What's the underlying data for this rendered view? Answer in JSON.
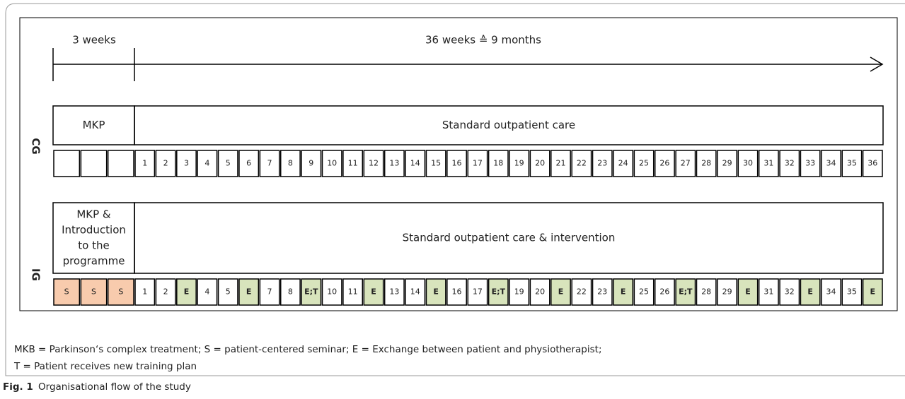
{
  "timeline": {
    "phase1": "3 weeks",
    "phase2": "36 weeks  ≙ 9 months"
  },
  "groups": [
    {
      "label": "CG",
      "phase1": [
        "MKP"
      ],
      "phase2": "Standard outpatient care",
      "pre_cells": [],
      "weeks": [
        1,
        2,
        3,
        4,
        5,
        6,
        7,
        8,
        9,
        10,
        11,
        12,
        13,
        14,
        15,
        16,
        17,
        18,
        19,
        20,
        21,
        22,
        23,
        24,
        25,
        26,
        27,
        28,
        29,
        30,
        31,
        32,
        33,
        34,
        35,
        36
      ]
    },
    {
      "label": "IG",
      "phase1": [
        "MKP &",
        "Introduction",
        "to the",
        "programme"
      ],
      "phase2": "Standard outpatient care & intervention",
      "pre_cells": [
        "S",
        "S",
        "S"
      ],
      "weeks": [
        1,
        2,
        "E",
        4,
        5,
        "E",
        7,
        8,
        "E;T",
        10,
        11,
        "E",
        13,
        14,
        "E",
        16,
        17,
        "E;T",
        19,
        20,
        "E",
        22,
        23,
        "E",
        25,
        26,
        "E;T",
        28,
        29,
        "E",
        31,
        32,
        "E",
        34,
        35,
        "E"
      ]
    }
  ],
  "legend": [
    "MKB = Parkinson‘s complex treatment; S = patient-centered seminar;  E = Exchange between patient and physiotherapist;",
    "T = Patient receives new training plan"
  ],
  "caption": {
    "label": "Fig. 1",
    "text": "Organisational flow of the study"
  }
}
